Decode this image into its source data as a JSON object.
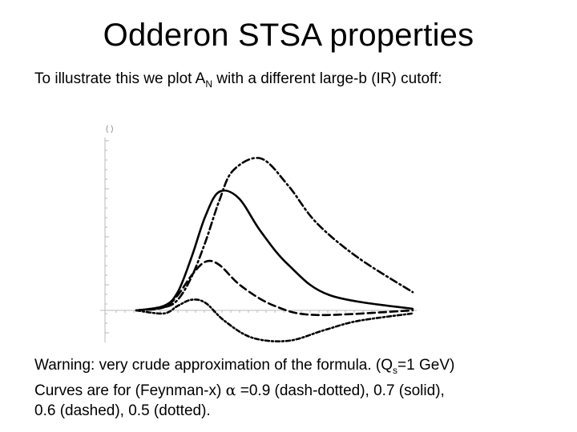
{
  "slide": {
    "title": "Odderon STSA properties",
    "intro_pre": "To illustrate this we plot A",
    "intro_sub": "N",
    "intro_post": " with a different large-b (IR) cutoff:",
    "warning_pre": "Warning: very crude approximation of the formula. (Q",
    "warning_sub": "s",
    "warning_post": "=1 GeV)",
    "curves_pre": "Curves are for (Feynman-x) ",
    "alpha_symbol": "α",
    "curves_post": " =0.9 (dash-dotted), 0.7 (solid),",
    "curves_line2": "0.6 (dashed), 0.5 (dotted)."
  },
  "chart_data": {
    "type": "line",
    "title": "",
    "xlabel": "",
    "ylabel": "( )",
    "grid": false,
    "legend": "none",
    "series": [
      {
        "name": "0.9",
        "style": "dash-dotted",
        "x": [
          0,
          0.1,
          0.15,
          0.2,
          0.25,
          0.3,
          0.35,
          0.45,
          0.55,
          0.65,
          0.8,
          1.0
        ],
        "y": [
          0,
          0.02,
          0.07,
          0.22,
          0.45,
          0.72,
          0.92,
          1.0,
          0.82,
          0.58,
          0.35,
          0.12
        ]
      },
      {
        "name": "0.7",
        "style": "solid",
        "x": [
          0,
          0.1,
          0.15,
          0.2,
          0.25,
          0.3,
          0.37,
          0.45,
          0.55,
          0.7,
          1.0
        ],
        "y": [
          0,
          0.03,
          0.12,
          0.35,
          0.62,
          0.78,
          0.74,
          0.52,
          0.3,
          0.1,
          0.01
        ]
      },
      {
        "name": "0.6",
        "style": "dashed",
        "x": [
          0,
          0.1,
          0.15,
          0.2,
          0.25,
          0.3,
          0.38,
          0.5,
          0.65,
          1.0
        ],
        "y": [
          0,
          0.02,
          0.1,
          0.23,
          0.32,
          0.3,
          0.16,
          0.03,
          -0.03,
          0
        ]
      },
      {
        "name": "0.5",
        "style": "dotted",
        "x": [
          0,
          0.1,
          0.15,
          0.2,
          0.25,
          0.32,
          0.42,
          0.55,
          0.68,
          0.8,
          1.0
        ],
        "y": [
          0,
          -0.02,
          0.03,
          0.07,
          0.05,
          -0.07,
          -0.18,
          -0.2,
          -0.13,
          -0.07,
          -0.02
        ]
      }
    ],
    "colors": {
      "curve": "#000000",
      "axis": "#b9b9b9"
    }
  }
}
